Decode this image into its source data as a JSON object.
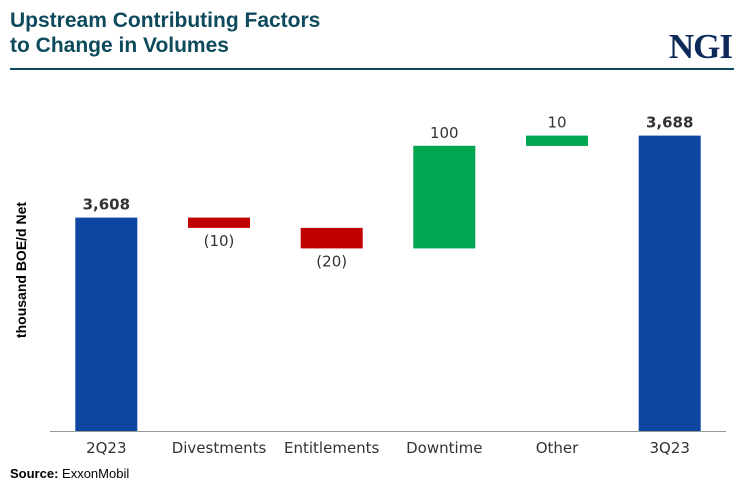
{
  "header": {
    "title_line1": "Upstream Contributing Factors",
    "title_line2": "to Change in Volumes",
    "logo_text": "NGI"
  },
  "chart_data": {
    "type": "bar",
    "subtype": "waterfall",
    "ylabel": "thousand BOE/d Net",
    "categories": [
      "2Q23",
      "Divestments",
      "Entitlements",
      "Downtime",
      "Other",
      "3Q23"
    ],
    "values": [
      3608,
      -10,
      -20,
      100,
      10,
      3688
    ],
    "value_labels": [
      "3,608",
      "(10)",
      "(20)",
      "100",
      "10",
      "3,688"
    ],
    "kinds": [
      "total",
      "delta",
      "delta",
      "delta",
      "delta",
      "total"
    ],
    "ylim": [
      3400,
      3710
    ],
    "grid": false,
    "colors": {
      "total": "#0d47a1",
      "increase": "#00a651",
      "decrease": "#c00000",
      "axis": "#999999",
      "label": "#333333"
    }
  },
  "footer": {
    "source_label": "Source:",
    "source_text": "ExxonMobil"
  }
}
